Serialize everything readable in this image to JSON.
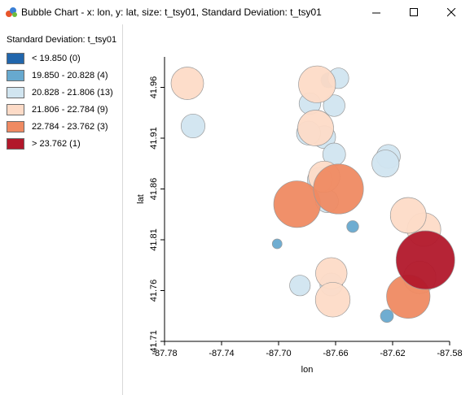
{
  "window": {
    "title": "Bubble Chart - x: lon, y: lat, size: t_tsy01, Standard Deviation: t_tsy01",
    "controls": {
      "minimize": "—",
      "maximize": "☐",
      "close": "✕"
    }
  },
  "legend": {
    "title": "Standard Deviation: t_tsy01",
    "items": [
      {
        "label": "< 19.850 (0)",
        "color": "#2166ac"
      },
      {
        "label": "19.850 - 20.828 (4)",
        "color": "#67a9cf"
      },
      {
        "label": "20.828 - 21.806 (13)",
        "color": "#d1e5f0"
      },
      {
        "label": "21.806 - 22.784 (9)",
        "color": "#fddbc7"
      },
      {
        "label": "22.784 - 23.762 (3)",
        "color": "#ef8a62"
      },
      {
        "label": "> 23.762 (1)",
        "color": "#b2182b"
      }
    ]
  },
  "chart_data": {
    "type": "scatter",
    "title": "",
    "xlabel": "lon",
    "ylabel": "lat",
    "xlim": [
      -87.78,
      -87.58
    ],
    "ylim": [
      41.71,
      41.99
    ],
    "xticks": [
      "-87.78",
      "-87.74",
      "-87.70",
      "-87.66",
      "-87.62",
      "-87.58"
    ],
    "yticks": [
      "41.71",
      "41.76",
      "41.81",
      "41.86",
      "41.91",
      "41.96"
    ],
    "points": [
      {
        "x": -87.665,
        "y": 41.967,
        "size": 20.4,
        "cls": 1
      },
      {
        "x": -87.658,
        "y": 41.969,
        "size": 20.9,
        "cls": 2
      },
      {
        "x": -87.678,
        "y": 41.944,
        "size": 21.0,
        "cls": 2
      },
      {
        "x": -87.661,
        "y": 41.942,
        "size": 21.0,
        "cls": 2
      },
      {
        "x": -87.679,
        "y": 41.915,
        "size": 21.2,
        "cls": 2
      },
      {
        "x": -87.668,
        "y": 41.911,
        "size": 21.1,
        "cls": 2
      },
      {
        "x": -87.661,
        "y": 41.894,
        "size": 21.1,
        "cls": 2
      },
      {
        "x": -87.623,
        "y": 41.892,
        "size": 21.2,
        "cls": 2
      },
      {
        "x": -87.76,
        "y": 41.922,
        "size": 21.2,
        "cls": 2
      },
      {
        "x": -87.666,
        "y": 41.848,
        "size": 21.1,
        "cls": 2
      },
      {
        "x": -87.663,
        "y": 41.766,
        "size": 21.1,
        "cls": 2
      },
      {
        "x": -87.685,
        "y": 41.765,
        "size": 20.9,
        "cls": 2
      },
      {
        "x": -87.625,
        "y": 41.885,
        "size": 21.5,
        "cls": 2
      },
      {
        "x": -87.671,
        "y": 41.869,
        "size": 21.3,
        "cls": 2
      },
      {
        "x": -87.764,
        "y": 41.964,
        "size": 22.0,
        "cls": 3
      },
      {
        "x": -87.673,
        "y": 41.963,
        "size": 22.4,
        "cls": 3
      },
      {
        "x": -87.674,
        "y": 41.92,
        "size": 22.3,
        "cls": 3
      },
      {
        "x": -87.668,
        "y": 41.872,
        "size": 21.9,
        "cls": 3
      },
      {
        "x": -87.598,
        "y": 41.82,
        "size": 22.1,
        "cls": 3
      },
      {
        "x": -87.609,
        "y": 41.834,
        "size": 22.3,
        "cls": 3
      },
      {
        "x": -87.663,
        "y": 41.777,
        "size": 21.9,
        "cls": 3
      },
      {
        "x": -87.662,
        "y": 41.751,
        "size": 22.2,
        "cls": 3
      },
      {
        "x": -87.601,
        "y": 41.773,
        "size": 22.0,
        "cls": 3
      },
      {
        "x": -87.687,
        "y": 41.845,
        "size": 23.3,
        "cls": 4
      },
      {
        "x": -87.658,
        "y": 41.86,
        "size": 23.6,
        "cls": 4
      },
      {
        "x": -87.609,
        "y": 41.754,
        "size": 23.0,
        "cls": 4
      },
      {
        "x": -87.648,
        "y": 41.823,
        "size": 20.1,
        "cls": 1
      },
      {
        "x": -87.701,
        "y": 41.806,
        "size": 19.9,
        "cls": 1
      },
      {
        "x": -87.624,
        "y": 41.735,
        "size": 20.2,
        "cls": 1
      },
      {
        "x": -87.597,
        "y": 41.79,
        "size": 24.4,
        "cls": 5
      }
    ]
  }
}
